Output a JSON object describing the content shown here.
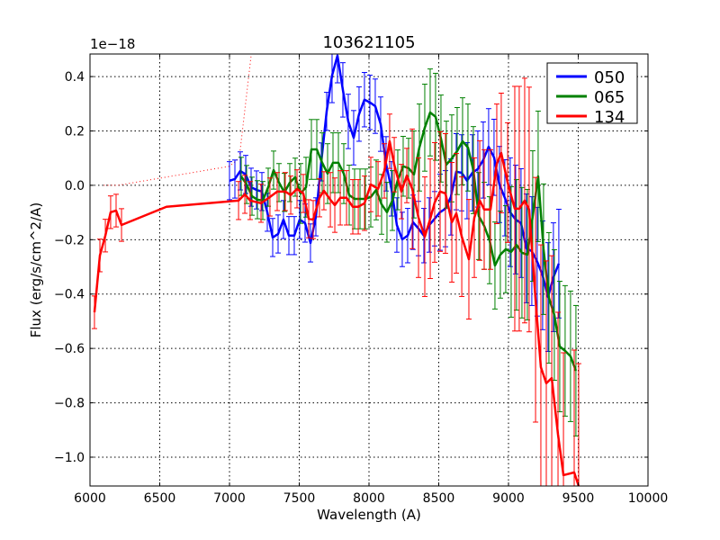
{
  "chart_data": {
    "type": "line",
    "title": "103621105",
    "xlabel": "Wavelength (A)",
    "ylabel": "Flux (erg/s/cm^2/A)",
    "offset_label": "1e−18",
    "xlim": [
      6000,
      10000
    ],
    "ylim": [
      -1.106,
      0.483
    ],
    "xticks": [
      6000,
      6500,
      7000,
      7500,
      8000,
      8500,
      9000,
      9500,
      10000
    ],
    "xtick_labels": [
      "6000",
      "6500",
      "7000",
      "7500",
      "8000",
      "8500",
      "9000",
      "9500",
      "10000"
    ],
    "yticks": [
      0.4,
      0.2,
      0.0,
      -0.2,
      -0.4,
      -0.6,
      -0.8,
      -1.0
    ],
    "ytick_labels": [
      "0.4",
      "0.2",
      "0.0",
      "−0.2",
      "−0.4",
      "−0.6",
      "−0.8",
      "−1.0"
    ],
    "grid": true,
    "legend_placement": "top-right",
    "series": [
      {
        "name": "050",
        "color": "#0000ff",
        "x_start": 7000,
        "x_step": 38.7,
        "y": [
          0.017,
          0.023,
          0.053,
          0.04,
          -0.007,
          -0.017,
          -0.023,
          -0.099,
          -0.192,
          -0.179,
          -0.126,
          -0.185,
          -0.185,
          -0.126,
          -0.139,
          -0.212,
          -0.116,
          0.086,
          0.272,
          0.404,
          0.477,
          0.351,
          0.235,
          0.175,
          0.262,
          0.315,
          0.305,
          0.291,
          0.225,
          0.079,
          -0.013,
          -0.146,
          -0.199,
          -0.185,
          -0.136,
          -0.159,
          -0.185,
          -0.146,
          -0.123,
          -0.099,
          -0.086,
          -0.043,
          0.05,
          0.046,
          0.017,
          0.046,
          0.06,
          0.093,
          0.142,
          0.103,
          0.003,
          -0.046,
          -0.099,
          -0.126,
          -0.139,
          -0.232,
          -0.242,
          -0.281,
          -0.331,
          -0.411,
          -0.338,
          -0.288
        ],
        "err_by_range": [
          [
            7700,
            0.07
          ],
          [
            8500,
            0.1
          ],
          [
            9000,
            0.14
          ],
          [
            10000,
            0.2
          ]
        ]
      },
      {
        "name": "065",
        "color": "#008000",
        "x_start": 7084,
        "x_step": 38.7,
        "y": [
          0.033,
          0.003,
          -0.04,
          -0.053,
          -0.056,
          -0.007,
          0.056,
          0.01,
          -0.026,
          0.01,
          0.03,
          -0.03,
          -0.007,
          0.132,
          0.132,
          0.083,
          0.043,
          0.083,
          0.083,
          0.043,
          -0.036,
          -0.05,
          -0.05,
          -0.05,
          -0.043,
          -0.017,
          -0.07,
          -0.099,
          -0.056,
          0.02,
          0.07,
          0.063,
          0.04,
          0.139,
          0.212,
          0.268,
          0.252,
          0.172,
          0.076,
          0.099,
          0.126,
          0.162,
          0.139,
          0.056,
          -0.113,
          -0.149,
          -0.202,
          -0.295,
          -0.255,
          -0.235,
          -0.245,
          -0.219,
          -0.248,
          -0.255,
          -0.113,
          0.033,
          -0.235,
          -0.414,
          -0.477,
          -0.593,
          -0.609,
          -0.629,
          -0.682
        ],
        "err_by_range": [
          [
            7500,
            0.07
          ],
          [
            8300,
            0.11
          ],
          [
            9000,
            0.16
          ],
          [
            10000,
            0.24
          ]
        ]
      },
      {
        "name": "134",
        "color": "#ff0000",
        "x": [
          6032,
          6071,
          6110,
          6148,
          6187,
          6226,
          6548,
          7065,
          7110,
          7148,
          7226,
          7290,
          7342,
          7400,
          7439,
          7484,
          7529,
          7568,
          7600,
          7645,
          7677,
          7723,
          7755,
          7794,
          7839,
          7884,
          7923,
          7968,
          8013,
          8065,
          8110,
          8148,
          8181,
          8232,
          8271,
          8310,
          8355,
          8400,
          8439,
          8471,
          8510,
          8548,
          8594,
          8626,
          8665,
          8716,
          8755,
          8794,
          8826,
          8871,
          8916,
          8948,
          8994,
          9045,
          9077,
          9116,
          9148,
          9194,
          9232,
          9271,
          9310,
          9355,
          9394,
          9471,
          9503
        ],
        "y": [
          -0.467,
          -0.258,
          -0.185,
          -0.099,
          -0.093,
          -0.146,
          -0.079,
          -0.056,
          -0.033,
          -0.056,
          -0.066,
          -0.043,
          -0.023,
          -0.023,
          -0.036,
          -0.013,
          -0.03,
          -0.123,
          -0.126,
          -0.046,
          -0.02,
          -0.053,
          -0.073,
          -0.046,
          -0.046,
          -0.079,
          -0.079,
          -0.066,
          0.003,
          -0.013,
          0.053,
          0.162,
          0.076,
          -0.023,
          0.036,
          -0.013,
          -0.119,
          -0.189,
          -0.123,
          -0.063,
          -0.023,
          -0.03,
          -0.136,
          -0.103,
          -0.189,
          -0.272,
          -0.119,
          -0.056,
          -0.089,
          -0.089,
          0.079,
          0.119,
          0.01,
          -0.086,
          -0.086,
          -0.056,
          -0.089,
          -0.421,
          -0.669,
          -0.728,
          -0.709,
          -0.917,
          -1.066,
          -1.056,
          -1.106
        ],
        "err_by_range": [
          [
            6300,
            0.06
          ],
          [
            7000,
            0.0
          ],
          [
            7700,
            0.07
          ],
          [
            8300,
            0.1
          ],
          [
            9000,
            0.22
          ],
          [
            10000,
            0.45
          ]
        ]
      }
    ],
    "model_line": {
      "color": "#ff0000",
      "style": "dotted",
      "x": [
        6100,
        6200,
        7000,
        7070,
        7160
      ],
      "y": [
        0.0,
        0.0,
        0.07,
        0.1,
        0.5
      ]
    }
  }
}
